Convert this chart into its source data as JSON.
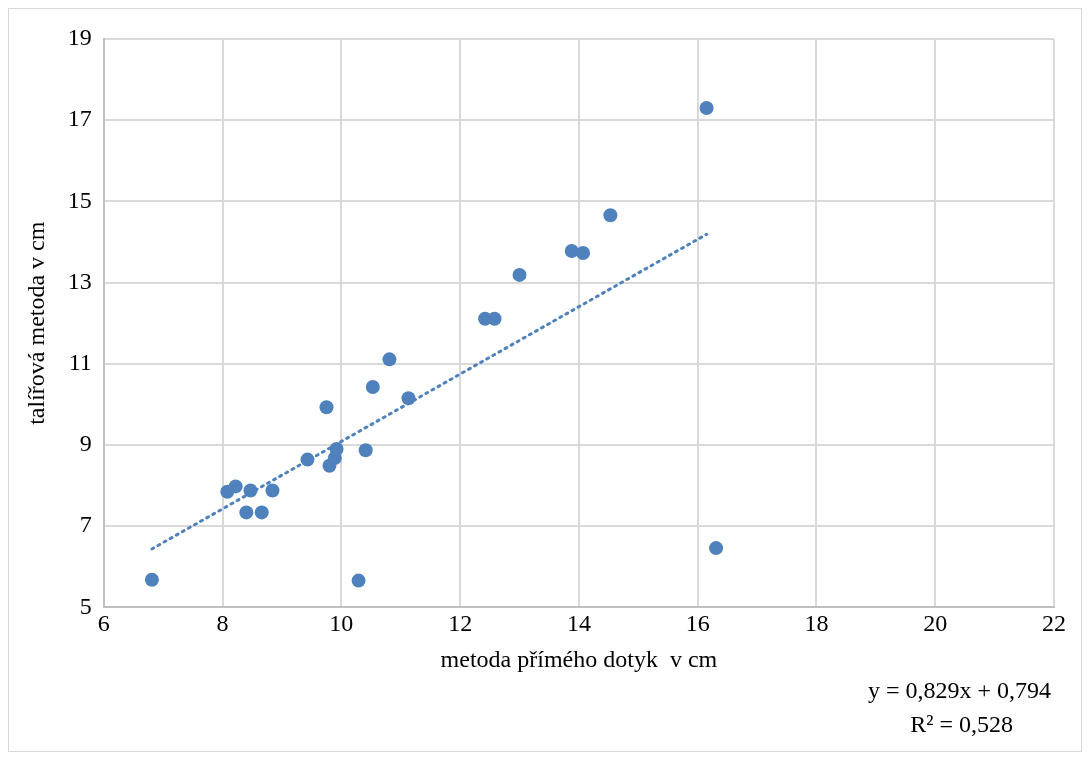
{
  "chart_data": {
    "type": "scatter",
    "xlabel": "metoda přímého dotyk  v cm",
    "ylabel": "talířová metoda v cm",
    "xlim": [
      6,
      22
    ],
    "xticks": [
      6,
      8,
      10,
      12,
      14,
      16,
      18,
      20,
      22
    ],
    "ylim": [
      5,
      19
    ],
    "yticks": [
      5,
      7,
      9,
      11,
      13,
      15,
      17,
      19
    ],
    "grid": true,
    "legend": false,
    "marker": "circle",
    "series": [
      {
        "color": "#4f81bd",
        "x": [
          6.81,
          8.08,
          8.15,
          8.22,
          8.47,
          8.84,
          8.4,
          8.66,
          9.43,
          9.75,
          9.8,
          9.89,
          9.92,
          10.41,
          10.29,
          10.53,
          10.81,
          11.13,
          12.42,
          12.58,
          13.0,
          13.88,
          14.07,
          14.53,
          16.15,
          16.31
        ],
        "values": [
          5.68,
          7.85,
          null,
          7.98,
          7.88,
          7.88,
          7.34,
          7.34,
          8.64,
          9.93,
          8.49,
          8.68,
          8.9,
          8.87,
          5.66,
          10.43,
          11.11,
          10.15,
          12.11,
          12.11,
          13.19,
          13.78,
          13.73,
          14.66,
          17.3,
          6.46
        ]
      },
      {
        "type": "line",
        "line_style": "dotted",
        "marker": "none",
        "color": "#4f81bd",
        "x": [
          6.81,
          16.15
        ],
        "values": [
          6.44,
          14.19
        ]
      }
    ],
    "annotations": [
      "y = 0,829x + 0,794",
      "R² = 0,528"
    ]
  }
}
